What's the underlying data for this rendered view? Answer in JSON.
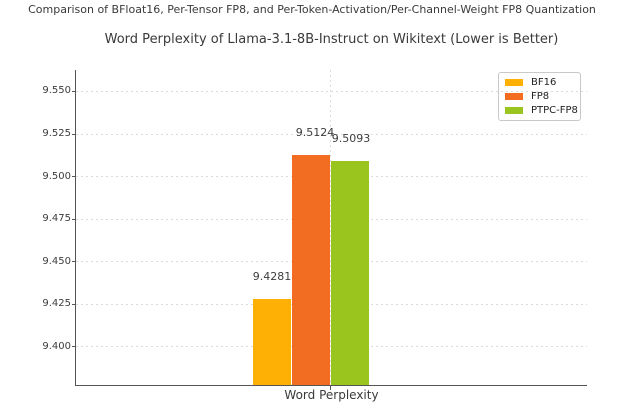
{
  "suptitle": "Comparison of BFloat16, Per-Tensor FP8, and Per-Token-Activation/Per-Channel-Weight FP8 Quantization",
  "chart_data": {
    "type": "bar",
    "title": "Word Perplexity of Llama-3.1-8B-Instruct on Wikitext (Lower is Better)",
    "categories": [
      "Word Perplexity"
    ],
    "series": [
      {
        "name": "BF16",
        "values": [
          9.4281
        ],
        "label": "9.4281",
        "color": "#FFB005"
      },
      {
        "name": "FP8",
        "values": [
          9.5124
        ],
        "label": "9.5124",
        "color": "#F26C21"
      },
      {
        "name": "PTPC-FP8",
        "values": [
          9.5093
        ],
        "label": "9.5093",
        "color": "#99C51E"
      }
    ],
    "xlabel": "Word Perplexity",
    "ylabel": "",
    "ylim": [
      9.3776,
      9.5626
    ],
    "yticks": [
      9.4,
      9.425,
      9.45,
      9.475,
      9.5,
      9.525,
      9.55
    ],
    "ytick_labels": [
      "9.400",
      "9.425",
      "9.450",
      "9.475",
      "9.500",
      "9.525",
      "9.550"
    ],
    "grid": true,
    "legend_position": "upper right"
  },
  "colors": {
    "background": "#ffffff",
    "text": "#3a3a3a",
    "spine": "#555555",
    "gridline": "#dcdcdc",
    "legend_border": "#c9c9c9"
  }
}
